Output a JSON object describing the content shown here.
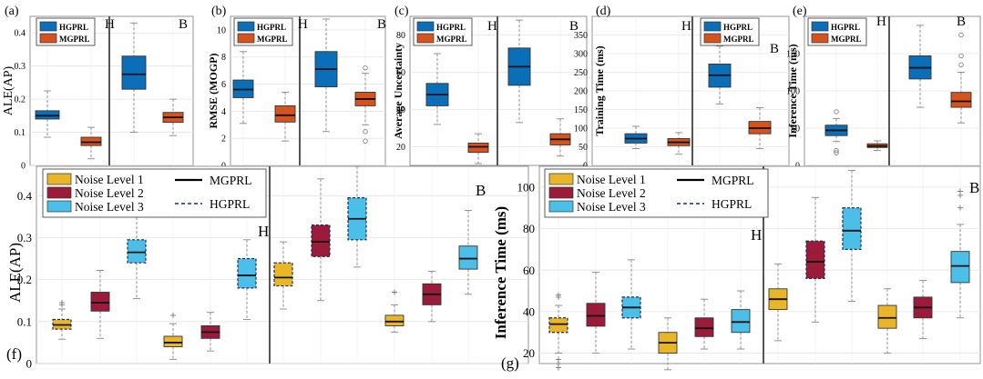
{
  "colors": {
    "hgprl": "#0a6fb8",
    "mgprl": "#d4531e",
    "noise1": "#e9b62a",
    "noise2": "#9b1b3a",
    "noise3": "#4cbfe8"
  },
  "chart_data": [
    {
      "id": "a",
      "panel_label": "(a)",
      "type": "boxplot",
      "ylabel": "ALE(AP)",
      "ylim": [
        0,
        0.45
      ],
      "yticks": [
        0,
        0.1,
        0.2,
        0.3,
        0.4
      ],
      "tick_labels": [
        "0",
        "0.1",
        "0.2",
        "0.3",
        "0.4"
      ],
      "groups": [
        "H",
        "B"
      ],
      "legend": [
        "HGPRL",
        "MGPRL"
      ],
      "boxes": [
        {
          "group": "H",
          "series": "HGPRL",
          "min": 0.085,
          "q1": 0.14,
          "median": 0.15,
          "q3": 0.165,
          "max": 0.225,
          "outliers": []
        },
        {
          "group": "H",
          "series": "MGPRL",
          "min": 0.02,
          "q1": 0.06,
          "median": 0.07,
          "q3": 0.085,
          "max": 0.115,
          "outliers": []
        },
        {
          "group": "B",
          "series": "HGPRL",
          "min": 0.1,
          "q1": 0.23,
          "median": 0.275,
          "q3": 0.33,
          "max": 0.43,
          "outliers": []
        },
        {
          "group": "B",
          "series": "MGPRL",
          "min": 0.09,
          "q1": 0.13,
          "median": 0.145,
          "q3": 0.16,
          "max": 0.2,
          "outliers": []
        }
      ]
    },
    {
      "id": "b",
      "panel_label": "(b)",
      "type": "boxplot",
      "ylabel": "RMSE (MOGP)",
      "ylim": [
        0,
        11
      ],
      "yticks": [
        0,
        2,
        4,
        6,
        8,
        10
      ],
      "tick_labels": [
        "0",
        "2",
        "4",
        "6",
        "8",
        "10"
      ],
      "groups": [
        "H",
        "B"
      ],
      "legend": [
        "HGPRL",
        "MGPRL"
      ],
      "boxes": [
        {
          "group": "H",
          "series": "HGPRL",
          "min": 3.1,
          "q1": 5.0,
          "median": 5.6,
          "q3": 6.3,
          "max": 8.4,
          "outliers": []
        },
        {
          "group": "H",
          "series": "MGPRL",
          "min": 1.8,
          "q1": 3.2,
          "median": 3.7,
          "q3": 4.4,
          "max": 5.4,
          "outliers": []
        },
        {
          "group": "B",
          "series": "HGPRL",
          "min": 2.5,
          "q1": 5.8,
          "median": 7.1,
          "q3": 8.4,
          "max": 10.8,
          "outliers": []
        },
        {
          "group": "B",
          "series": "MGPRL",
          "min": 3.0,
          "q1": 4.4,
          "median": 4.9,
          "q3": 5.4,
          "max": 6.8,
          "outliers": [
            7.2,
            2.5,
            1.8
          ]
        }
      ]
    },
    {
      "id": "c",
      "panel_label": "(c)",
      "type": "boxplot",
      "ylabel": "Average Uncertainty",
      "ylim": [
        10,
        90
      ],
      "yticks": [
        20,
        40,
        60,
        80
      ],
      "tick_labels": [
        "20",
        "40",
        "60",
        "80"
      ],
      "groups": [
        "H",
        "B"
      ],
      "legend": [
        "HGPRL",
        "MGPRL"
      ],
      "boxes": [
        {
          "group": "H",
          "series": "HGPRL",
          "min": 32,
          "q1": 42,
          "median": 48,
          "q3": 54,
          "max": 70,
          "outliers": []
        },
        {
          "group": "H",
          "series": "MGPRL",
          "min": 11,
          "q1": 17,
          "median": 20,
          "q3": 22,
          "max": 27,
          "outliers": []
        },
        {
          "group": "B",
          "series": "HGPRL",
          "min": 33,
          "q1": 53,
          "median": 63,
          "q3": 73,
          "max": 88,
          "outliers": []
        },
        {
          "group": "B",
          "series": "MGPRL",
          "min": 15,
          "q1": 21,
          "median": 24,
          "q3": 27,
          "max": 35,
          "outliers": []
        }
      ]
    },
    {
      "id": "d",
      "panel_label": "(d)",
      "type": "boxplot",
      "ylabel": "Training Time (ms)",
      "ylim": [
        0,
        400
      ],
      "yticks": [
        0,
        50,
        100,
        150,
        200,
        250,
        300,
        350
      ],
      "tick_labels": [
        "0",
        "50",
        "100",
        "150",
        "200",
        "250",
        "300",
        "350"
      ],
      "groups": [
        "H",
        "B"
      ],
      "legend": [
        "HGPRL",
        "MGPRL"
      ],
      "boxes": [
        {
          "group": "H",
          "series": "HGPRL",
          "min": 45,
          "q1": 60,
          "median": 72,
          "q3": 85,
          "max": 105,
          "outliers": []
        },
        {
          "group": "H",
          "series": "MGPRL",
          "min": 30,
          "q1": 53,
          "median": 62,
          "q3": 72,
          "max": 88,
          "outliers": []
        },
        {
          "group": "B",
          "series": "HGPRL",
          "min": 165,
          "q1": 210,
          "median": 242,
          "q3": 272,
          "max": 320,
          "outliers": [
            370
          ]
        },
        {
          "group": "B",
          "series": "MGPRL",
          "min": 45,
          "q1": 85,
          "median": 100,
          "q3": 118,
          "max": 155,
          "outliers": []
        }
      ]
    },
    {
      "id": "e",
      "panel_label": "(e)",
      "type": "boxplot",
      "ylabel": "Inference Time (ms)",
      "ylim": [
        0,
        200
      ],
      "yticks": [
        0,
        50,
        100,
        150
      ],
      "tick_labels": [
        "0",
        "50",
        "100",
        "150"
      ],
      "groups": [
        "H",
        "B"
      ],
      "legend": [
        "HGPRL",
        "MGPRL"
      ],
      "boxes": [
        {
          "group": "H",
          "series": "HGPRL",
          "min": 32,
          "q1": 40,
          "median": 47,
          "q3": 54,
          "max": 63,
          "outliers": [
            72,
            20,
            17
          ]
        },
        {
          "group": "H",
          "series": "MGPRL",
          "min": 20,
          "q1": 24,
          "median": 26,
          "q3": 29,
          "max": 33,
          "outliers": []
        },
        {
          "group": "B",
          "series": "HGPRL",
          "min": 78,
          "q1": 116,
          "median": 131,
          "q3": 147,
          "max": 188,
          "outliers": []
        },
        {
          "group": "B",
          "series": "MGPRL",
          "min": 57,
          "q1": 78,
          "median": 86,
          "q3": 98,
          "max": 125,
          "outliers": [
            175,
            147,
            135
          ]
        }
      ]
    },
    {
      "id": "f",
      "panel_label": "(f)",
      "type": "boxplot",
      "ylabel": "ALE(AP)",
      "ylim": [
        0,
        0.47
      ],
      "yticks": [
        0,
        0.1,
        0.2,
        0.3,
        0.4
      ],
      "tick_labels": [
        "0",
        "0.1",
        "0.2",
        "0.3",
        "0.4"
      ],
      "groups": [
        "H",
        "B"
      ],
      "legend": [
        "Noise Level 1",
        "Noise Level 2",
        "Noise Level 3",
        "MGPRL",
        "HGPRL"
      ],
      "boxes": [
        {
          "group": "H",
          "method": "HGPRL",
          "noise": 1,
          "min": 0.058,
          "q1": 0.082,
          "median": 0.092,
          "q3": 0.105,
          "max": 0.13,
          "outliers": [
            0.145,
            0.14
          ]
        },
        {
          "group": "H",
          "method": "MGPRL",
          "noise": 2,
          "min": 0.06,
          "q1": 0.125,
          "median": 0.145,
          "q3": 0.17,
          "max": 0.222,
          "outliers": []
        },
        {
          "group": "H",
          "method": "HGPRL",
          "noise": 3,
          "min": 0.155,
          "q1": 0.24,
          "median": 0.265,
          "q3": 0.295,
          "max": 0.37,
          "outliers": []
        },
        {
          "group": "H",
          "method": "MGPRL",
          "noise": 1,
          "min": 0.01,
          "q1": 0.04,
          "median": 0.05,
          "q3": 0.065,
          "max": 0.095,
          "outliers": [
            0.115
          ]
        },
        {
          "group": "H",
          "method": "MGPRL",
          "noise": 2,
          "min": 0.03,
          "q1": 0.06,
          "median": 0.075,
          "q3": 0.09,
          "max": 0.122,
          "outliers": []
        },
        {
          "group": "H",
          "method": "HGPRL",
          "noise": 3,
          "min": 0.105,
          "q1": 0.18,
          "median": 0.21,
          "q3": 0.25,
          "max": 0.295,
          "outliers": []
        },
        {
          "group": "B",
          "method": "HGPRL",
          "noise": 1,
          "min": 0.13,
          "q1": 0.185,
          "median": 0.205,
          "q3": 0.24,
          "max": 0.29,
          "outliers": []
        },
        {
          "group": "B",
          "method": "HGPRL",
          "noise": 2,
          "min": 0.15,
          "q1": 0.255,
          "median": 0.29,
          "q3": 0.33,
          "max": 0.44,
          "outliers": []
        },
        {
          "group": "B",
          "method": "HGPRL",
          "noise": 3,
          "min": 0.23,
          "q1": 0.295,
          "median": 0.345,
          "q3": 0.395,
          "max": 0.47,
          "outliers": []
        },
        {
          "group": "B",
          "method": "MGPRL",
          "noise": 1,
          "min": 0.075,
          "q1": 0.09,
          "median": 0.1,
          "q3": 0.115,
          "max": 0.14,
          "outliers": [
            0.17
          ]
        },
        {
          "group": "B",
          "method": "MGPRL",
          "noise": 2,
          "min": 0.1,
          "q1": 0.14,
          "median": 0.165,
          "q3": 0.19,
          "max": 0.22,
          "outliers": []
        },
        {
          "group": "B",
          "method": "MGPRL",
          "noise": 3,
          "min": 0.165,
          "q1": 0.225,
          "median": 0.25,
          "q3": 0.28,
          "max": 0.365,
          "outliers": []
        }
      ]
    },
    {
      "id": "g",
      "panel_label": "(g)",
      "type": "boxplot",
      "ylabel": "Inference Time (ms)",
      "ylim": [
        15,
        110
      ],
      "yticks": [
        20,
        40,
        60,
        80,
        100
      ],
      "tick_labels": [
        "20",
        "40",
        "60",
        "80",
        "100"
      ],
      "groups": [
        "H",
        "B"
      ],
      "legend": [
        "Noise Level 1",
        "Noise Level 2",
        "Noise Level 3",
        "MGPRL",
        "HGPRL"
      ],
      "boxes": [
        {
          "group": "H",
          "method": "HGPRL",
          "noise": 1,
          "min": 20,
          "q1": 30,
          "median": 34,
          "q3": 37,
          "max": 43,
          "outliers": [
            48,
            47,
            17,
            15,
            13
          ]
        },
        {
          "group": "H",
          "method": "MGPRL",
          "noise": 2,
          "min": 20,
          "q1": 33,
          "median": 38,
          "q3": 44,
          "max": 59,
          "outliers": []
        },
        {
          "group": "H",
          "method": "HGPRL",
          "noise": 3,
          "min": 22,
          "q1": 37,
          "median": 42,
          "q3": 47,
          "max": 65,
          "outliers": []
        },
        {
          "group": "H",
          "method": "MGPRL",
          "noise": 1,
          "min": 12,
          "q1": 20,
          "median": 25,
          "q3": 30,
          "max": 37,
          "outliers": []
        },
        {
          "group": "H",
          "method": "MGPRL",
          "noise": 2,
          "min": 22,
          "q1": 28,
          "median": 32,
          "q3": 37,
          "max": 46,
          "outliers": []
        },
        {
          "group": "H",
          "method": "MGPRL",
          "noise": 3,
          "min": 22,
          "q1": 30,
          "median": 35,
          "q3": 41,
          "max": 50,
          "outliers": []
        },
        {
          "group": "B",
          "method": "MGPRL",
          "noise": 1,
          "min": 26,
          "q1": 41,
          "median": 46,
          "q3": 51,
          "max": 63,
          "outliers": []
        },
        {
          "group": "B",
          "method": "HGPRL",
          "noise": 2,
          "min": 35,
          "q1": 56,
          "median": 64,
          "q3": 74,
          "max": 95,
          "outliers": []
        },
        {
          "group": "B",
          "method": "HGPRL",
          "noise": 3,
          "min": 45,
          "q1": 70,
          "median": 79,
          "q3": 90,
          "max": 108,
          "outliers": []
        },
        {
          "group": "B",
          "method": "MGPRL",
          "noise": 1,
          "min": 20,
          "q1": 32,
          "median": 37,
          "q3": 43,
          "max": 51,
          "outliers": []
        },
        {
          "group": "B",
          "method": "MGPRL",
          "noise": 2,
          "min": 27,
          "q1": 37,
          "median": 42,
          "q3": 47,
          "max": 55,
          "outliers": []
        },
        {
          "group": "B",
          "method": "MGPRL",
          "noise": 3,
          "min": 37,
          "q1": 54,
          "median": 62,
          "q3": 69,
          "max": 82,
          "outliers": [
            98,
            96,
            90
          ]
        }
      ]
    }
  ]
}
